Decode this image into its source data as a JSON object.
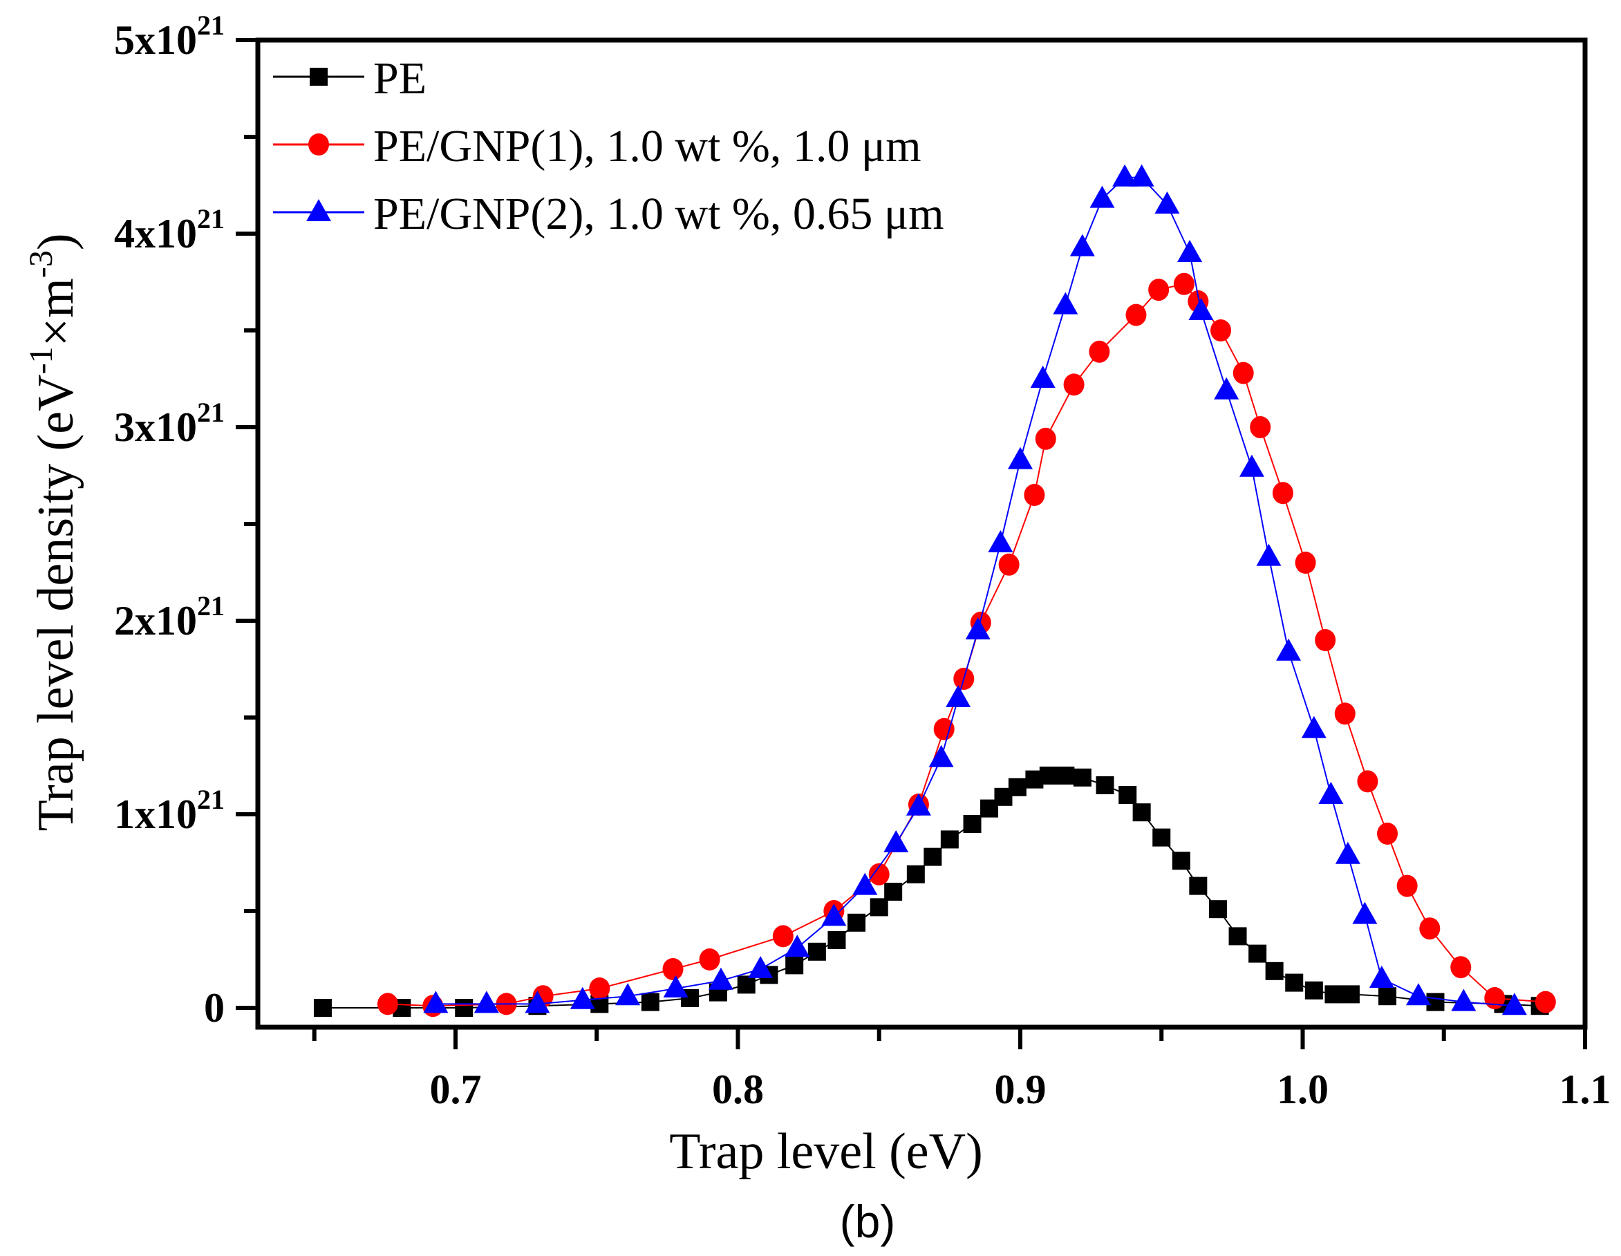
{
  "chart_data": {
    "type": "line",
    "title": "",
    "panel_label": "(b)",
    "xlabel": "Trap level (eV)",
    "ylabel": "Trap level density (eV-1×m-3)",
    "ylabel_parts": {
      "base": "Trap level density (eV",
      "sup1": "-1",
      "mid": "×m",
      "sup2": "-3",
      "end": ")"
    },
    "xlim": [
      0.63,
      1.1
    ],
    "ylim": [
      -1e+20,
      5e+21
    ],
    "grid": false,
    "legend_position": "top-left",
    "x_ticks": [
      {
        "value": 0.7,
        "label": "0.7"
      },
      {
        "value": 0.8,
        "label": "0.8"
      },
      {
        "value": 0.9,
        "label": "0.9"
      },
      {
        "value": 1.0,
        "label": "1.0"
      },
      {
        "value": 1.1,
        "label": "1.1"
      }
    ],
    "x_minor_ticks": [
      0.65,
      0.75,
      0.85,
      0.95,
      1.05
    ],
    "y_ticks": [
      {
        "value": 0,
        "mantissa": "0",
        "exp": ""
      },
      {
        "value": 1e+21,
        "mantissa": "1x10",
        "exp": "21"
      },
      {
        "value": 2e+21,
        "mantissa": "2x10",
        "exp": "21"
      },
      {
        "value": 3e+21,
        "mantissa": "3x10",
        "exp": "21"
      },
      {
        "value": 4e+21,
        "mantissa": "4x10",
        "exp": "21"
      },
      {
        "value": 5e+21,
        "mantissa": "5x10",
        "exp": "21"
      }
    ],
    "y_minor_ticks": [
      5e+20,
      1.5e+21,
      2.5e+21,
      3.5e+21,
      4.5e+21
    ],
    "y_unit_scale": 1e+21,
    "series": [
      {
        "name": "PE",
        "color": "#000000",
        "marker": "square",
        "x": [
          0.653,
          0.681,
          0.703,
          0.729,
          0.751,
          0.769,
          0.783,
          0.793,
          0.803,
          0.811,
          0.82,
          0.828,
          0.835,
          0.842,
          0.85,
          0.855,
          0.863,
          0.869,
          0.875,
          0.883,
          0.889,
          0.894,
          0.899,
          0.905,
          0.91,
          0.916,
          0.922,
          0.93,
          0.938,
          0.943,
          0.95,
          0.957,
          0.963,
          0.97,
          0.977,
          0.984,
          0.99,
          0.997,
          1.004,
          1.011,
          1.017,
          1.03,
          1.047,
          1.071,
          1.084
        ],
        "y": [
          0,
          0,
          0,
          0.01,
          0.02,
          0.03,
          0.05,
          0.08,
          0.12,
          0.17,
          0.22,
          0.29,
          0.35,
          0.44,
          0.52,
          0.6,
          0.69,
          0.78,
          0.87,
          0.95,
          1.03,
          1.09,
          1.14,
          1.18,
          1.2,
          1.2,
          1.19,
          1.15,
          1.1,
          1.01,
          0.88,
          0.76,
          0.63,
          0.51,
          0.37,
          0.28,
          0.19,
          0.13,
          0.09,
          0.07,
          0.07,
          0.06,
          0.03,
          0.02,
          0.01
        ]
      },
      {
        "name": "PE/GNP(1), 1.0 wt %, 1.0 μm",
        "color": "#ff0000",
        "marker": "circle",
        "x": [
          0.676,
          0.692,
          0.718,
          0.731,
          0.751,
          0.777,
          0.79,
          0.816,
          0.834,
          0.85,
          0.864,
          0.873,
          0.88,
          0.886,
          0.896,
          0.905,
          0.909,
          0.919,
          0.928,
          0.941,
          0.949,
          0.958,
          0.963,
          0.971,
          0.979,
          0.985,
          0.993,
          1.001,
          1.008,
          1.015,
          1.023,
          1.03,
          1.037,
          1.045,
          1.056,
          1.068,
          1.086
        ],
        "y": [
          0.02,
          0.01,
          0.02,
          0.06,
          0.1,
          0.2,
          0.25,
          0.37,
          0.5,
          0.69,
          1.05,
          1.44,
          1.7,
          1.99,
          2.29,
          2.65,
          2.94,
          3.22,
          3.39,
          3.58,
          3.71,
          3.74,
          3.65,
          3.5,
          3.28,
          3.0,
          2.66,
          2.3,
          1.9,
          1.52,
          1.17,
          0.9,
          0.63,
          0.41,
          0.21,
          0.05,
          0.03
        ]
      },
      {
        "name": "PE/GNP(2), 1.0 wt %, 0.65 μm",
        "color": "#0000ff",
        "marker": "triangle",
        "x": [
          0.693,
          0.711,
          0.729,
          0.745,
          0.761,
          0.778,
          0.794,
          0.808,
          0.821,
          0.834,
          0.845,
          0.856,
          0.864,
          0.872,
          0.878,
          0.885,
          0.893,
          0.9,
          0.908,
          0.916,
          0.922,
          0.929,
          0.937,
          0.943,
          0.952,
          0.96,
          0.964,
          0.973,
          0.982,
          0.988,
          0.995,
          1.004,
          1.01,
          1.016,
          1.022,
          1.028,
          1.041,
          1.057,
          1.075
        ],
        "y": [
          0.02,
          0.02,
          0.02,
          0.04,
          0.06,
          0.1,
          0.14,
          0.2,
          0.31,
          0.47,
          0.63,
          0.85,
          1.04,
          1.29,
          1.6,
          1.95,
          2.4,
          2.83,
          3.25,
          3.63,
          3.93,
          4.18,
          4.29,
          4.29,
          4.15,
          3.9,
          3.6,
          3.19,
          2.79,
          2.33,
          1.84,
          1.44,
          1.1,
          0.79,
          0.48,
          0.15,
          0.06,
          0.03,
          0.01
        ]
      }
    ]
  }
}
